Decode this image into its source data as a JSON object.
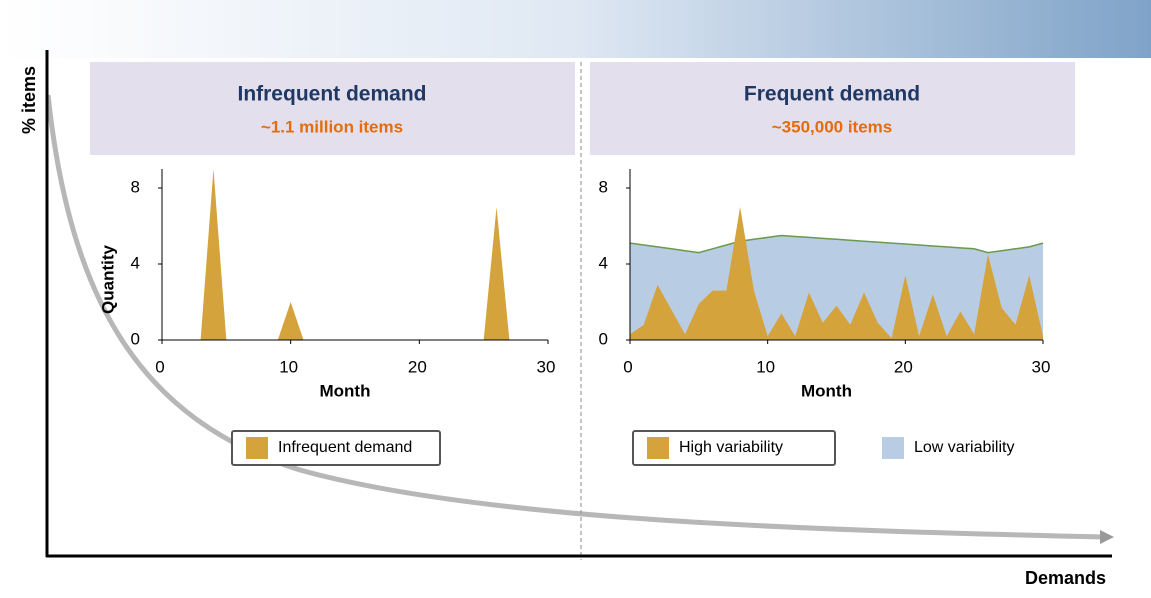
{
  "y_label": "% items",
  "x_label": "Demands",
  "chart_data": [
    {
      "type": "area",
      "title": "Infrequent demand",
      "subtitle": "~1.1 million items",
      "xlabel": "Month",
      "ylabel": "Quantity",
      "x": [
        0,
        1,
        2,
        3,
        4,
        5,
        6,
        7,
        8,
        9,
        10,
        11,
        12,
        13,
        14,
        15,
        16,
        17,
        18,
        19,
        20,
        21,
        22,
        23,
        24,
        25,
        26,
        27,
        28,
        29,
        30
      ],
      "series": [
        {
          "name": "Infrequent demand",
          "color": "#d4a33c",
          "values": [
            0,
            0,
            0,
            0,
            9,
            0,
            0,
            0,
            0,
            0,
            2,
            0,
            0,
            0,
            0,
            0,
            0,
            0,
            0,
            0,
            0,
            0,
            0,
            0,
            0,
            0,
            7,
            0,
            0,
            0,
            0
          ]
        }
      ],
      "xlim": [
        0,
        30
      ],
      "ylim": [
        0,
        9
      ],
      "xticks": [
        0,
        10,
        20,
        30
      ],
      "yticks": [
        0,
        4,
        8
      ]
    },
    {
      "type": "area",
      "title": "Frequent demand",
      "subtitle": "~350,000 items",
      "xlabel": "Month",
      "x": [
        0,
        1,
        2,
        3,
        4,
        5,
        6,
        7,
        8,
        9,
        10,
        11,
        12,
        13,
        14,
        15,
        16,
        17,
        18,
        19,
        20,
        21,
        22,
        23,
        24,
        25,
        26,
        27,
        28,
        29,
        30
      ],
      "series": [
        {
          "name": "High variability",
          "color": "#d4a33c",
          "values": [
            0.3,
            0.8,
            2.9,
            1.6,
            0.3,
            1.9,
            2.6,
            2.6,
            7.0,
            2.6,
            0.2,
            1.4,
            0.2,
            2.5,
            0.9,
            1.8,
            0.8,
            2.5,
            0.9,
            0.1,
            3.4,
            0.2,
            2.4,
            0.2,
            1.5,
            0.3,
            4.5,
            1.7,
            0.8,
            3.4,
            0.2
          ]
        },
        {
          "name": "Low variability",
          "color": "#b8cce4",
          "stroke": "#6a9a4a",
          "values": [
            5.1,
            5.0,
            4.9,
            4.8,
            4.7,
            4.6,
            4.8,
            5.0,
            5.2,
            5.3,
            5.4,
            5.5,
            5.45,
            5.4,
            5.35,
            5.3,
            5.25,
            5.2,
            5.15,
            5.1,
            5.05,
            5.0,
            4.95,
            4.9,
            4.85,
            4.8,
            4.6,
            4.7,
            4.8,
            4.9,
            5.1
          ]
        }
      ],
      "xlim": [
        0,
        30
      ],
      "ylim": [
        0,
        9
      ],
      "xticks": [
        0,
        10,
        20,
        30
      ],
      "yticks": [
        0,
        4,
        8
      ]
    }
  ]
}
